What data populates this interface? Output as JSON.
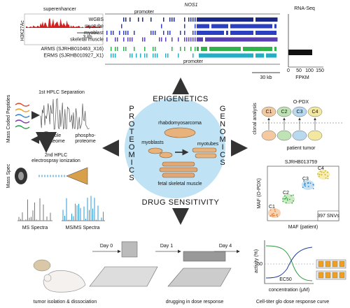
{
  "epigenetics": {
    "superenhancer": "superenhancer",
    "mark": "H3K27Ac",
    "scale_small": "3 kb",
    "promoter": "promoter",
    "gene": "NOS1",
    "tracks": [
      "WGBS",
      "myotube",
      "myoblast",
      "skeletal muscle",
      "ARMS (SJRHB010463_X16)",
      "ERMS (SJRHB010927_X1)"
    ],
    "scale_large": "30 kb",
    "rnaseq": {
      "title": "RNA-Seq",
      "ticks": [
        "0",
        "50",
        "100",
        "150"
      ],
      "unit": "FPKM"
    }
  },
  "center": {
    "top": "EPIGENETICS",
    "left": "PROTEOMICS",
    "right": "GENOMICS",
    "bottom": "DRUG SENSITIVITY",
    "tumor": "rhabdomyosarcoma",
    "myoblasts": "myoblasts",
    "myotubes": "myotubes",
    "fetal": "fetal skeletal muscle"
  },
  "proteomics": {
    "peptides": "Mass Coded Peptides",
    "hplc1": "1st HPLC Separation",
    "whole": [
      "whole",
      "proteome"
    ],
    "phospho": [
      "phospho-",
      "proteome"
    ],
    "hplc2": [
      "2nd HPLC",
      "electrospray ionization"
    ],
    "mass_spec": "Mass Spec",
    "ms": "MS Spectra",
    "msms": "MS/MS Spectra"
  },
  "genomics": {
    "clonal": "clonal analysis",
    "opdx": "O-PDX",
    "clones": [
      "C1",
      "C2",
      "C3",
      "C4"
    ],
    "patient": "patient tumor",
    "sample": "SJRHB013759",
    "y_label": "MAF (O-PDX)",
    "x_label": "MAF (patient)",
    "snvs": "397 SNVs"
  },
  "drug": {
    "days": [
      "Day 0",
      "Day 1",
      "Day 4"
    ],
    "steps": [
      "tumor isolation & dissociation",
      "drugging in dose response",
      "Cell-titer glo dose response curve"
    ],
    "y_label": "activity (%)",
    "y_tick": "50",
    "x_label": "concentration (μM)",
    "ec50": "EC50"
  }
}
